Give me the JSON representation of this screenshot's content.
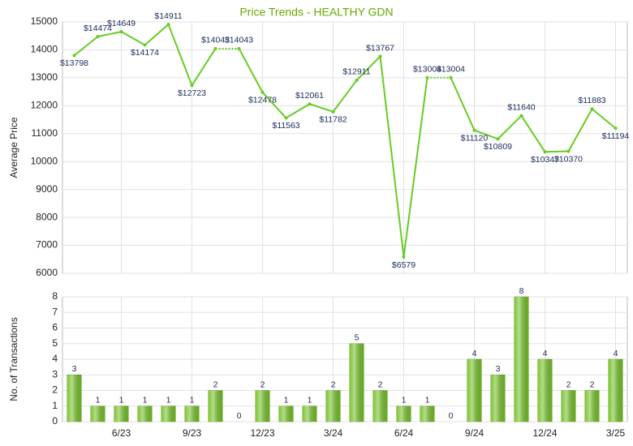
{
  "chart_data": [
    {
      "type": "line",
      "title": "Price Trends - HEALTHY GDN",
      "y_label": "Average Price",
      "values": [
        13798,
        14474,
        14649,
        14174,
        14911,
        12723,
        14043,
        14043,
        12478,
        11563,
        12061,
        11782,
        12911,
        13767,
        6579,
        13004,
        13004,
        11120,
        10809,
        11640,
        10347,
        10370,
        11883,
        11194
      ],
      "value_labels": [
        "$13798",
        "$14474",
        "$14649",
        "$14174",
        "$14911",
        "$12723",
        "$14043",
        "$14043",
        "$12478",
        "$11563",
        "$12061",
        "$11782",
        "$12911",
        "$13767",
        "$6579",
        "$13004",
        "$13004",
        "$11120",
        "$10809",
        "$11640",
        "$10347",
        "$10370",
        "$11883",
        "$11194"
      ],
      "color": "#66cc22",
      "ylim": [
        6000,
        15000
      ],
      "yticks": [
        6000,
        7000,
        8000,
        9000,
        10000,
        11000,
        12000,
        13000,
        14000,
        15000
      ],
      "grid": true
    },
    {
      "type": "bar",
      "y_label": "No. of Transactions",
      "categories": [
        null,
        null,
        "6/23",
        null,
        null,
        "9/23",
        null,
        null,
        "12/23",
        null,
        null,
        "3/24",
        null,
        null,
        "6/24",
        null,
        null,
        "9/24",
        null,
        null,
        "12/24",
        null,
        null,
        "3/25"
      ],
      "values": [
        3,
        1,
        1,
        1,
        1,
        1,
        2,
        0,
        2,
        1,
        1,
        2,
        5,
        2,
        1,
        1,
        0,
        4,
        3,
        8,
        4,
        2,
        2,
        4
      ],
      "color": "#77c22a",
      "ylim": [
        0,
        8
      ],
      "yticks": [
        0,
        1,
        2,
        3,
        4,
        5,
        6,
        7,
        8
      ],
      "grid": true
    }
  ]
}
